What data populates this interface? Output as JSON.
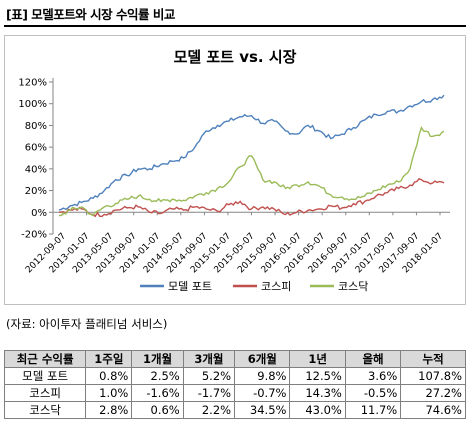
{
  "header": {
    "title": "[표] 모델포트와 시장 수익률 비교"
  },
  "source_note": "(자료: 아이투자 플래티넘 서비스)",
  "chart_data": {
    "type": "line",
    "title": "모델 포트 vs. 시장",
    "xlabel": "",
    "ylabel": "",
    "ylim": [
      -20,
      120
    ],
    "yticks": [
      "-20%",
      "0%",
      "20%",
      "40%",
      "60%",
      "80%",
      "100%",
      "120%"
    ],
    "xtick_labels": [
      "2012-09-07",
      "2013-01-07",
      "2013-05-07",
      "2013-09-07",
      "2014-01-07",
      "2014-05-07",
      "2014-09-07",
      "2015-01-07",
      "2015-05-07",
      "2015-09-07",
      "2016-01-07",
      "2016-05-07",
      "2016-09-07",
      "2017-01-07",
      "2017-05-07",
      "2017-09-07",
      "2018-01-07"
    ],
    "x": [
      "2012-09",
      "2012-11",
      "2013-01",
      "2013-03",
      "2013-05",
      "2013-07",
      "2013-09",
      "2013-11",
      "2014-01",
      "2014-03",
      "2014-05",
      "2014-07",
      "2014-09",
      "2014-11",
      "2015-01",
      "2015-03",
      "2015-05",
      "2015-07",
      "2015-09",
      "2015-11",
      "2016-01",
      "2016-03",
      "2016-05",
      "2016-07",
      "2016-09",
      "2016-11",
      "2017-01",
      "2017-03",
      "2017-05",
      "2017-07",
      "2017-09",
      "2017-11",
      "2018-01",
      "2018-03",
      "2018-05"
    ],
    "legend_position": "bottom",
    "grid": false,
    "series": [
      {
        "name": "모델 포트",
        "color": "#4f81bd",
        "values": [
          2,
          6,
          9,
          13,
          20,
          30,
          34,
          40,
          40,
          44,
          47,
          50,
          60,
          75,
          80,
          84,
          88,
          89,
          82,
          84,
          75,
          72,
          80,
          75,
          68,
          72,
          78,
          85,
          90,
          93,
          93,
          98,
          102,
          104,
          107.8
        ]
      },
      {
        "name": "코스피",
        "color": "#c0504d",
        "values": [
          0,
          2,
          3,
          -2,
          -2,
          2,
          4,
          5,
          0,
          -1,
          3,
          2,
          5,
          3,
          1,
          7,
          10,
          3,
          5,
          3,
          -2,
          0,
          2,
          3,
          6,
          4,
          8,
          10,
          15,
          18,
          22,
          25,
          30,
          27,
          27.2
        ]
      },
      {
        "name": "코스닥",
        "color": "#9bbb59",
        "values": [
          -3,
          2,
          5,
          -3,
          5,
          8,
          12,
          15,
          12,
          10,
          12,
          11,
          15,
          18,
          22,
          28,
          42,
          52,
          30,
          28,
          22,
          25,
          28,
          24,
          16,
          14,
          12,
          15,
          20,
          25,
          28,
          40,
          78,
          70,
          74.6
        ]
      }
    ]
  },
  "table": {
    "headers": [
      "최근 수익률",
      "1주일",
      "1개월",
      "3개월",
      "6개월",
      "1년",
      "올해",
      "누적"
    ],
    "rows": [
      [
        "모델 포트",
        "0.8%",
        "2.5%",
        "5.2%",
        "9.8%",
        "12.5%",
        "3.6%",
        "107.8%"
      ],
      [
        "코스피",
        "1.0%",
        "-1.6%",
        "-1.7%",
        "-0.7%",
        "14.3%",
        "-0.5%",
        "27.2%"
      ],
      [
        "코스닥",
        "2.8%",
        "0.6%",
        "2.2%",
        "34.5%",
        "43.0%",
        "11.7%",
        "74.6%"
      ]
    ]
  }
}
